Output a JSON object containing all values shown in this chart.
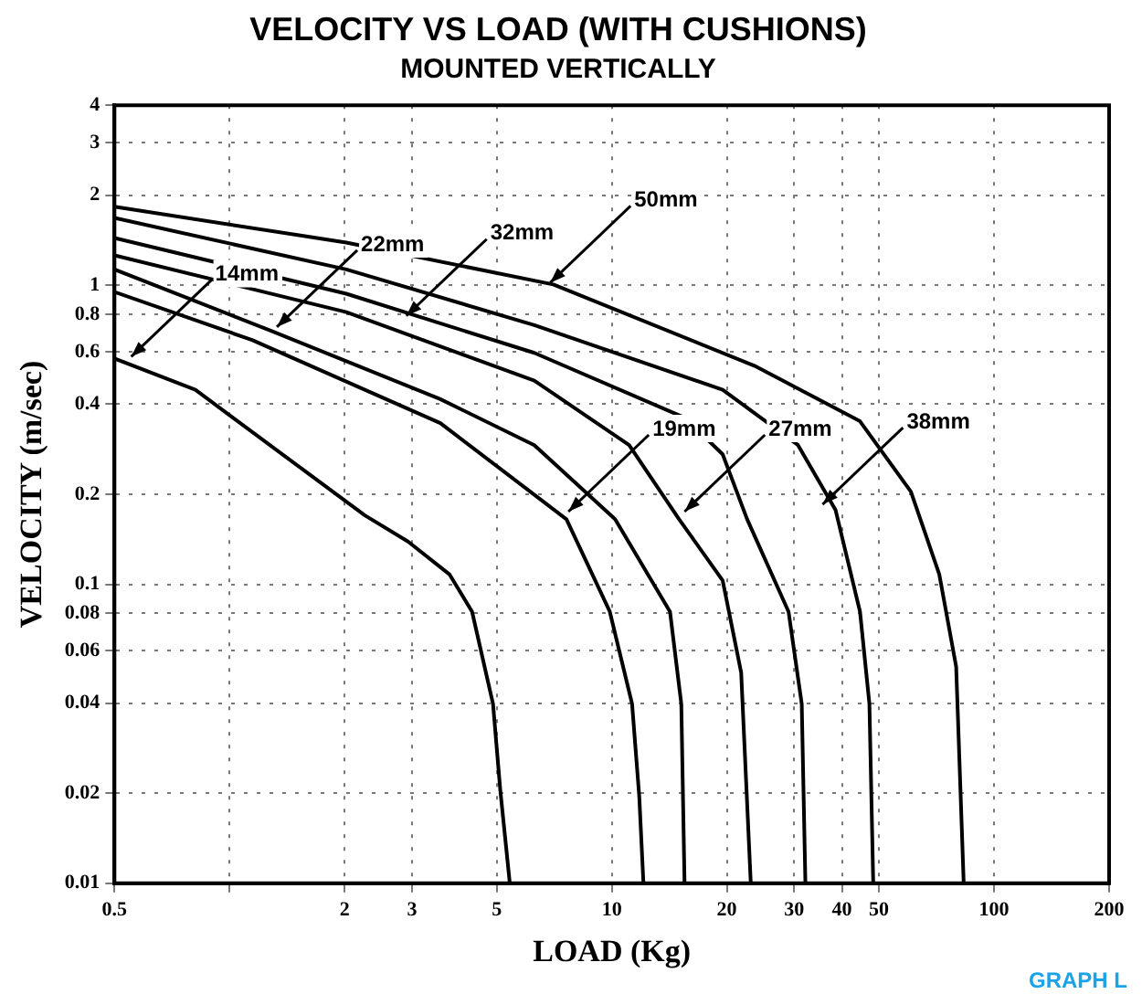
{
  "chart_data": {
    "type": "line",
    "title": "VELOCITY VS LOAD (WITH CUSHIONS)",
    "subtitle": "MOUNTED VERTICALLY",
    "xlabel": "LOAD (Kg)",
    "ylabel": "VELOCITY (m/sec)",
    "log": "xy",
    "grid": true,
    "legend": false,
    "marker": "none",
    "line_style": "solid",
    "xlim": [
      0.5,
      200
    ],
    "ylim": [
      0.01,
      4
    ],
    "xticks": [
      0.5,
      {
        "value": 1,
        "label": null
      },
      2,
      3,
      5,
      10,
      20,
      30,
      40,
      50,
      100,
      200
    ],
    "yticks": [
      0.01,
      0.02,
      0.04,
      0.06,
      0.08,
      0.1,
      0.2,
      0.4,
      0.6,
      0.8,
      1,
      2,
      3,
      4
    ],
    "series": [
      {
        "color": "#000000",
        "x": [
          0.5,
          0.814,
          1.555,
          2.26,
          2.93,
          3.76,
          4.31,
          4.89,
          5.11,
          5.41
        ],
        "values": [
          0.569,
          0.447,
          0.242,
          0.17,
          0.139,
          0.108,
          0.081,
          0.0398,
          0.0204,
          0.01
        ]
      },
      {
        "color": "#000000",
        "x": [
          0.5,
          1.145,
          3.56,
          7.61,
          9.88,
          11.3,
          11.8,
          12.1
        ],
        "values": [
          0.95,
          0.656,
          0.346,
          0.165,
          0.081,
          0.0398,
          0.0195,
          0.01
        ]
      },
      {
        "color": "#000000",
        "x": [
          0.5,
          1.28,
          3.56,
          6.27,
          10.2,
          14.2,
          15.2,
          15.5
        ],
        "values": [
          1.13,
          0.705,
          0.416,
          0.292,
          0.165,
          0.081,
          0.0398,
          0.01
        ]
      },
      {
        "color": "#000000",
        "x": [
          0.5,
          2.02,
          6.27,
          11.1,
          15.0,
          19.5,
          21.8,
          23.1
        ],
        "values": [
          1.26,
          0.813,
          0.48,
          0.292,
          0.165,
          0.103,
          0.0507,
          0.01
        ]
      },
      {
        "color": "#000000",
        "x": [
          0.5,
          2.02,
          6.27,
          15.5,
          19.5,
          22.6,
          29.0,
          31.4,
          32.1
        ],
        "values": [
          1.44,
          0.937,
          0.594,
          0.361,
          0.272,
          0.165,
          0.081,
          0.0398,
          0.01
        ]
      },
      {
        "color": "#000000",
        "x": [
          0.5,
          2.02,
          6.27,
          19.5,
          30.7,
          38.5,
          44.6,
          47.2,
          48.3
        ],
        "values": [
          1.68,
          1.13,
          0.736,
          0.447,
          0.292,
          0.177,
          0.081,
          0.0398,
          0.01
        ]
      },
      {
        "color": "#000000",
        "x": [
          0.5,
          2.02,
          7.03,
          23.6,
          44.6,
          60.6,
          71.9,
          79.6,
          83.3
        ],
        "values": [
          1.83,
          1.39,
          1.006,
          0.538,
          0.351,
          0.204,
          0.108,
          0.053,
          0.01
        ]
      }
    ],
    "annotations": [
      {
        "text": "14mm",
        "x": 0.553,
        "y": 0.577
      },
      {
        "text": "19mm",
        "x": 7.7,
        "y": 0.175
      },
      {
        "text": "22mm",
        "x": 1.33,
        "y": 0.725
      },
      {
        "text": "27mm",
        "x": 15.5,
        "y": 0.175
      },
      {
        "text": "32mm",
        "x": 2.9,
        "y": 0.79
      },
      {
        "text": "38mm",
        "x": 35.6,
        "y": 0.185
      },
      {
        "text": "50mm",
        "x": 6.9,
        "y": 1.02
      },
      "GRAPH L"
    ]
  }
}
